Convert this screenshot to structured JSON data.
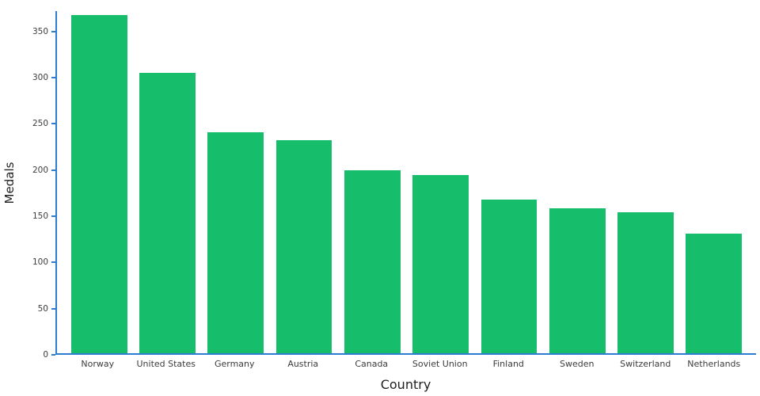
{
  "chart_data": {
    "type": "bar",
    "title": "",
    "xlabel": "Country",
    "ylabel": "Medals",
    "categories": [
      "Norway",
      "United States",
      "Germany",
      "Austria",
      "Canada",
      "Soviet Union",
      "Finland",
      "Sweden",
      "Switzerland",
      "Netherlands"
    ],
    "values": [
      368,
      305,
      240,
      232,
      199,
      194,
      167,
      158,
      153,
      130
    ],
    "ylim": [
      0,
      372
    ],
    "yticks": [
      0,
      50,
      100,
      150,
      200,
      250,
      300,
      350
    ],
    "bar_color": "#16bd6b",
    "axis_color": "#2d7dd2",
    "grid": false,
    "legend": "none"
  }
}
